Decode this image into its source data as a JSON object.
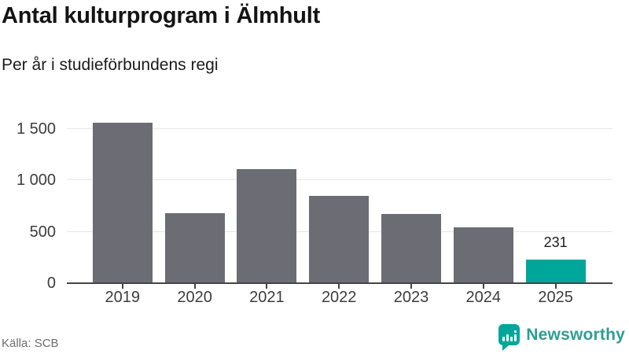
{
  "title": "Antal kulturprogram i Älmhult",
  "subtitle": "Per år i studieförbundens regi",
  "source": "Källa: SCB",
  "brand": {
    "name": "Newsworthy",
    "icon": "newsworthy-speech-bubble-chart-icon",
    "accent_color": "#00a69a",
    "text_color": "#2e9d95"
  },
  "chart_data": {
    "type": "bar",
    "title": "Antal kulturprogram i Älmhult",
    "subtitle": "Per år i studieförbundens regi",
    "categories": [
      "2019",
      "2020",
      "2021",
      "2022",
      "2023",
      "2024",
      "2025"
    ],
    "values": [
      1560,
      680,
      1110,
      850,
      670,
      540,
      231
    ],
    "value_labels": [
      {
        "category": "2025",
        "text": "231"
      }
    ],
    "highlight_category": "2025",
    "xlabel": "",
    "ylabel": "",
    "yticks": [
      0,
      500,
      1000,
      1500
    ],
    "ytick_labels": [
      "0",
      "500",
      "1 000",
      "1 500"
    ],
    "ylim": [
      0,
      1680
    ],
    "grid": "horizontal",
    "legend": "none",
    "bar_color": "#6c6c74",
    "highlight_color": "#00a69a",
    "axis_color": "#454545",
    "grid_color": "#e7e7e7",
    "tick_label_color": "#3d3d3d"
  }
}
